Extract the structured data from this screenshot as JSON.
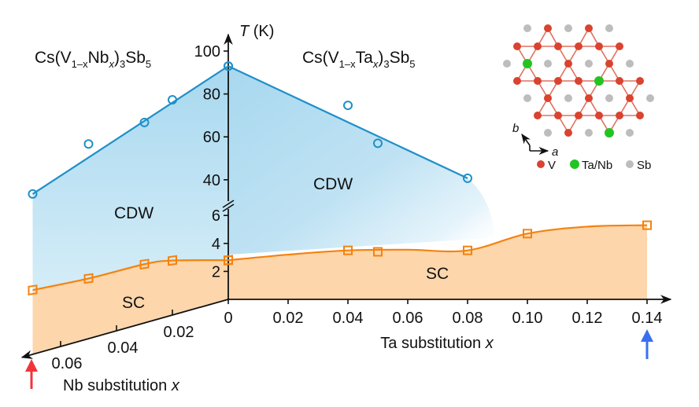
{
  "chart_data": {
    "type": "line",
    "title": "",
    "y_axis": {
      "label_italic": "T",
      "label_unit": " (K)",
      "upper_ticks": [
        40,
        60,
        80,
        100
      ],
      "upper_range": [
        35,
        105
      ],
      "lower_ticks": [
        2,
        4,
        6
      ],
      "lower_range": [
        0,
        6.5
      ],
      "break": true
    },
    "ta_axis": {
      "label": "Ta substitution ",
      "label_var": "x",
      "ticks": [
        0,
        0.02,
        0.04,
        0.06,
        0.08,
        0.1,
        0.12,
        0.14
      ],
      "tick_labels": [
        "0",
        "0.02",
        "0.04",
        "0.06",
        "0.08",
        "0.10",
        "0.12",
        "0.14"
      ],
      "range": [
        0,
        0.15
      ]
    },
    "nb_axis": {
      "label": "Nb substitution ",
      "label_var": "x",
      "ticks": [
        0.02,
        0.04,
        0.06
      ],
      "tick_labels": [
        "0.02",
        "0.04",
        "0.06"
      ],
      "range": [
        0,
        0.074
      ],
      "direction": "oblique toward lower-left"
    },
    "compounds": {
      "nb": {
        "base": "Cs(V",
        "sub1": "1–x",
        "mid": "Nb",
        "sub2": "x",
        "close": ")",
        "sub3": "3",
        "tail": "Sb",
        "sub4": "5"
      },
      "ta": {
        "base": "Cs(V",
        "sub1": "1–x",
        "mid": "Ta",
        "sub2": "x",
        "close": ")",
        "sub3": "3",
        "tail": "Sb",
        "sub4": "5"
      }
    },
    "region_labels": {
      "cdw_nb": "CDW",
      "cdw_ta": "CDW",
      "sc_nb": "SC",
      "sc_ta": "SC"
    },
    "series": [
      {
        "name": "T_CDW Nb-doped",
        "marker": "circle",
        "color": "#1f8fc8",
        "x": [
          0,
          0.02,
          0.03,
          0.05,
          0.07
        ],
        "y": [
          93,
          84.6,
          77.7,
          75,
          59
        ],
        "fit_line": "straight from 93 K at x=0 to 59 K at x=0.07"
      },
      {
        "name": "T_CDW Ta-doped",
        "marker": "circle",
        "color": "#1f8fc8",
        "x": [
          0,
          0.04,
          0.05,
          0.08
        ],
        "y": [
          93,
          74.7,
          57,
          40.7
        ],
        "fit_line": "straight from 93 K at x=0 to 40.7 K at x=0.08"
      },
      {
        "name": "T_c Nb-doped",
        "marker": "square",
        "color": "#f5820f",
        "x": [
          0,
          0.02,
          0.03,
          0.05,
          0.07
        ],
        "y": [
          2.8,
          3.9,
          4.2,
          4.3,
          4.6
        ]
      },
      {
        "name": "T_c Ta-doped",
        "marker": "square",
        "color": "#f5820f",
        "x": [
          0,
          0.04,
          0.05,
          0.08,
          0.1,
          0.14
        ],
        "y": [
          2.8,
          3.5,
          3.4,
          3.5,
          4.7,
          5.3
        ]
      }
    ],
    "colors": {
      "cdw_fill": "#a8d8ef",
      "sc_fill": "#fdd6ac",
      "cdw_line": "#1f8fc8",
      "sc_line": "#f5820f",
      "arrow_nb": "#f0353a",
      "arrow_ta": "#3a6ff0",
      "axis": "#111111"
    },
    "arrows": [
      {
        "axis": "nb",
        "at": 0.07,
        "color": "#f0353a"
      },
      {
        "axis": "ta",
        "at": 0.14,
        "color": "#3a6ff0"
      }
    ],
    "inset": {
      "description": "kagome lattice top view",
      "axis_labels": {
        "a": "a",
        "b": "b"
      },
      "legend": [
        {
          "label": "V",
          "color": "#d9432f"
        },
        {
          "label": "Ta/Nb",
          "color": "#22c422"
        },
        {
          "label": "Sb",
          "color": "#bdbdbd"
        }
      ]
    }
  }
}
